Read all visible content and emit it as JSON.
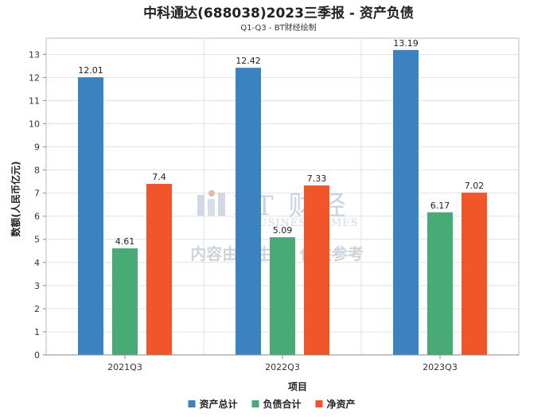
{
  "chart_data": {
    "type": "bar",
    "title": "中科通达(688038)2023三季报 - 资产负债",
    "subtitle": "Q1-Q3 - BT财经绘制",
    "xlabel": "项目",
    "ylabel": "数额(人民币亿元)",
    "ylim": [
      0,
      13.7
    ],
    "yticks": [
      0,
      1,
      2,
      3,
      4,
      5,
      6,
      7,
      8,
      9,
      10,
      11,
      12,
      13
    ],
    "grid": true,
    "legend_position": "bottom",
    "categories": [
      "2021Q3",
      "2022Q3",
      "2023Q3"
    ],
    "series": [
      {
        "name": "资产总计",
        "color": "#3a82c0",
        "values": [
          12.01,
          12.42,
          13.19
        ],
        "labels": [
          "12.01",
          "12.42",
          "13.19"
        ]
      },
      {
        "name": "负债合计",
        "color": "#48aa75",
        "values": [
          4.61,
          5.09,
          6.17
        ],
        "labels": [
          "4.61",
          "5.09",
          "6.17"
        ]
      },
      {
        "name": "净资产",
        "color": "#f0562a",
        "values": [
          7.4,
          7.33,
          7.02
        ],
        "labels": [
          "7.4",
          "7.33",
          "7.02"
        ]
      }
    ]
  },
  "watermark": {
    "logo_text": "BT 财经",
    "logo_sub": "BUSINESS TIMES",
    "note": "内容由AI生成, 仅供参考"
  }
}
